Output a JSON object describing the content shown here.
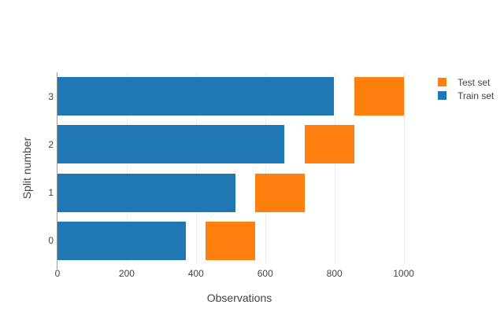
{
  "chart_data": {
    "type": "bar",
    "orientation": "horizontal",
    "title": "",
    "xlabel": "Observations",
    "ylabel": "Split number",
    "categories": [
      "0",
      "1",
      "2",
      "3"
    ],
    "x_ticks": [
      0,
      200,
      400,
      600,
      800,
      1000
    ],
    "xlim": [
      0,
      1051
    ],
    "grid": true,
    "legend_position": "top-right",
    "series": [
      {
        "name": "Train set",
        "color": "#1f77b4",
        "spans": [
          [
            0,
            370
          ],
          [
            0,
            513
          ],
          [
            0,
            656
          ],
          [
            0,
            799
          ]
        ]
      },
      {
        "name": "Test set",
        "color": "#ff7f0e",
        "spans": [
          [
            428,
            571
          ],
          [
            571,
            714
          ],
          [
            714,
            857
          ],
          [
            857,
            1000
          ]
        ]
      }
    ],
    "legend_items": [
      {
        "label": "Test set",
        "color": "#ff7f0e"
      },
      {
        "label": "Train set",
        "color": "#1f77b4"
      }
    ]
  },
  "style": {
    "train_color": "#1f77b4",
    "test_color": "#ff7f0e",
    "grid_color": "#ebebeb",
    "zeroline_color": "#9a9a9a",
    "text_color": "#444444",
    "background": "#ffffff"
  }
}
